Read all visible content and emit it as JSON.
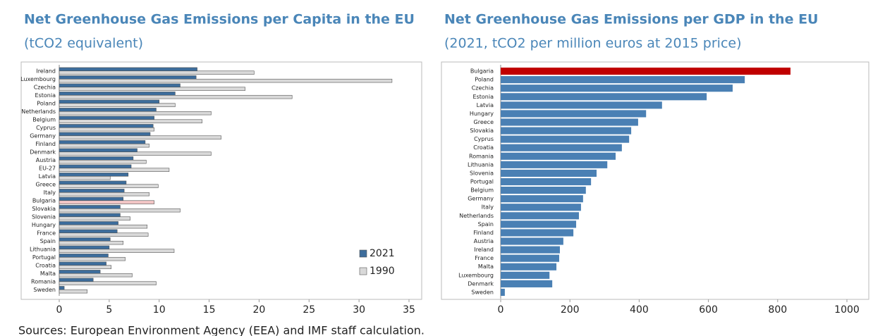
{
  "chart_data": [
    {
      "type": "bar",
      "orientation": "horizontal",
      "title": "Net Greenhouse Gas Emissions per Capita in the EU",
      "subtitle": "(tCO2 equivalent)",
      "categories": [
        "Ireland",
        "Luxembourg",
        "Czechia",
        "Estonia",
        "Poland",
        "Netherlands",
        "Belgium",
        "Cyprus",
        "Germany",
        "Finland",
        "Denmark",
        "Austria",
        "EU-27",
        "Latvia",
        "Greece",
        "Italy",
        "Bulgaria",
        "Slovakia",
        "Slovenia",
        "Hungary",
        "France",
        "Spain",
        "Lithuania",
        "Portugal",
        "Croatia",
        "Malta",
        "Romania",
        "Sweden"
      ],
      "series": [
        {
          "name": "2021",
          "color": "#3d6d9c",
          "values": [
            13.8,
            13.7,
            12.1,
            11.6,
            10.0,
            9.7,
            9.5,
            9.4,
            9.1,
            8.6,
            7.8,
            7.4,
            7.2,
            6.9,
            6.7,
            6.5,
            6.4,
            6.1,
            6.1,
            5.9,
            5.8,
            5.1,
            5.0,
            4.9,
            4.7,
            4.1,
            3.4,
            0.5
          ]
        },
        {
          "name": "1990",
          "color": "#d9d9d9",
          "values": [
            19.5,
            33.3,
            18.6,
            23.3,
            11.6,
            15.2,
            14.3,
            9.5,
            16.2,
            9.0,
            15.2,
            8.7,
            11.0,
            5.1,
            9.9,
            9.0,
            9.5,
            12.1,
            7.1,
            8.8,
            8.9,
            6.4,
            11.5,
            6.6,
            5.2,
            7.3,
            9.7,
            2.8
          ]
        }
      ],
      "highlight": {
        "category": "Bulgaria",
        "color": "#f2c6c6"
      },
      "xlim": [
        0,
        35
      ],
      "xticks": [
        0,
        5,
        10,
        15,
        20,
        25,
        30,
        35
      ],
      "legend": "lower right"
    },
    {
      "type": "bar",
      "orientation": "horizontal",
      "title": "Net Greenhouse Gas Emissions per GDP in the EU",
      "subtitle": "(2021, tCO2 per million euros at 2015 price)",
      "categories": [
        "Bulgaria",
        "Poland",
        "Czechia",
        "Estonia",
        "Latvia",
        "Hungary",
        "Greece",
        "Slovakia",
        "Cyprus",
        "Croatia",
        "Romania",
        "Lithuania",
        "Slovenia",
        "Portugal",
        "Belgium",
        "Germany",
        "Italy",
        "Netherlands",
        "Spain",
        "Finland",
        "Austria",
        "Ireland",
        "France",
        "Malta",
        "Luxembourg",
        "Denmark",
        "Sweden"
      ],
      "values": [
        837,
        705,
        670,
        595,
        466,
        420,
        397,
        377,
        371,
        350,
        332,
        308,
        277,
        261,
        246,
        238,
        232,
        226,
        218,
        210,
        181,
        171,
        169,
        161,
        141,
        149,
        12
      ],
      "color": "#4a80b4",
      "highlight": {
        "category": "Bulgaria",
        "color": "#c00000"
      },
      "xlim": [
        0,
        1000
      ],
      "xticks": [
        0,
        200,
        400,
        600,
        800,
        1000
      ]
    }
  ],
  "source": "Sources: European Environment Agency (EEA) and IMF staff calculation."
}
